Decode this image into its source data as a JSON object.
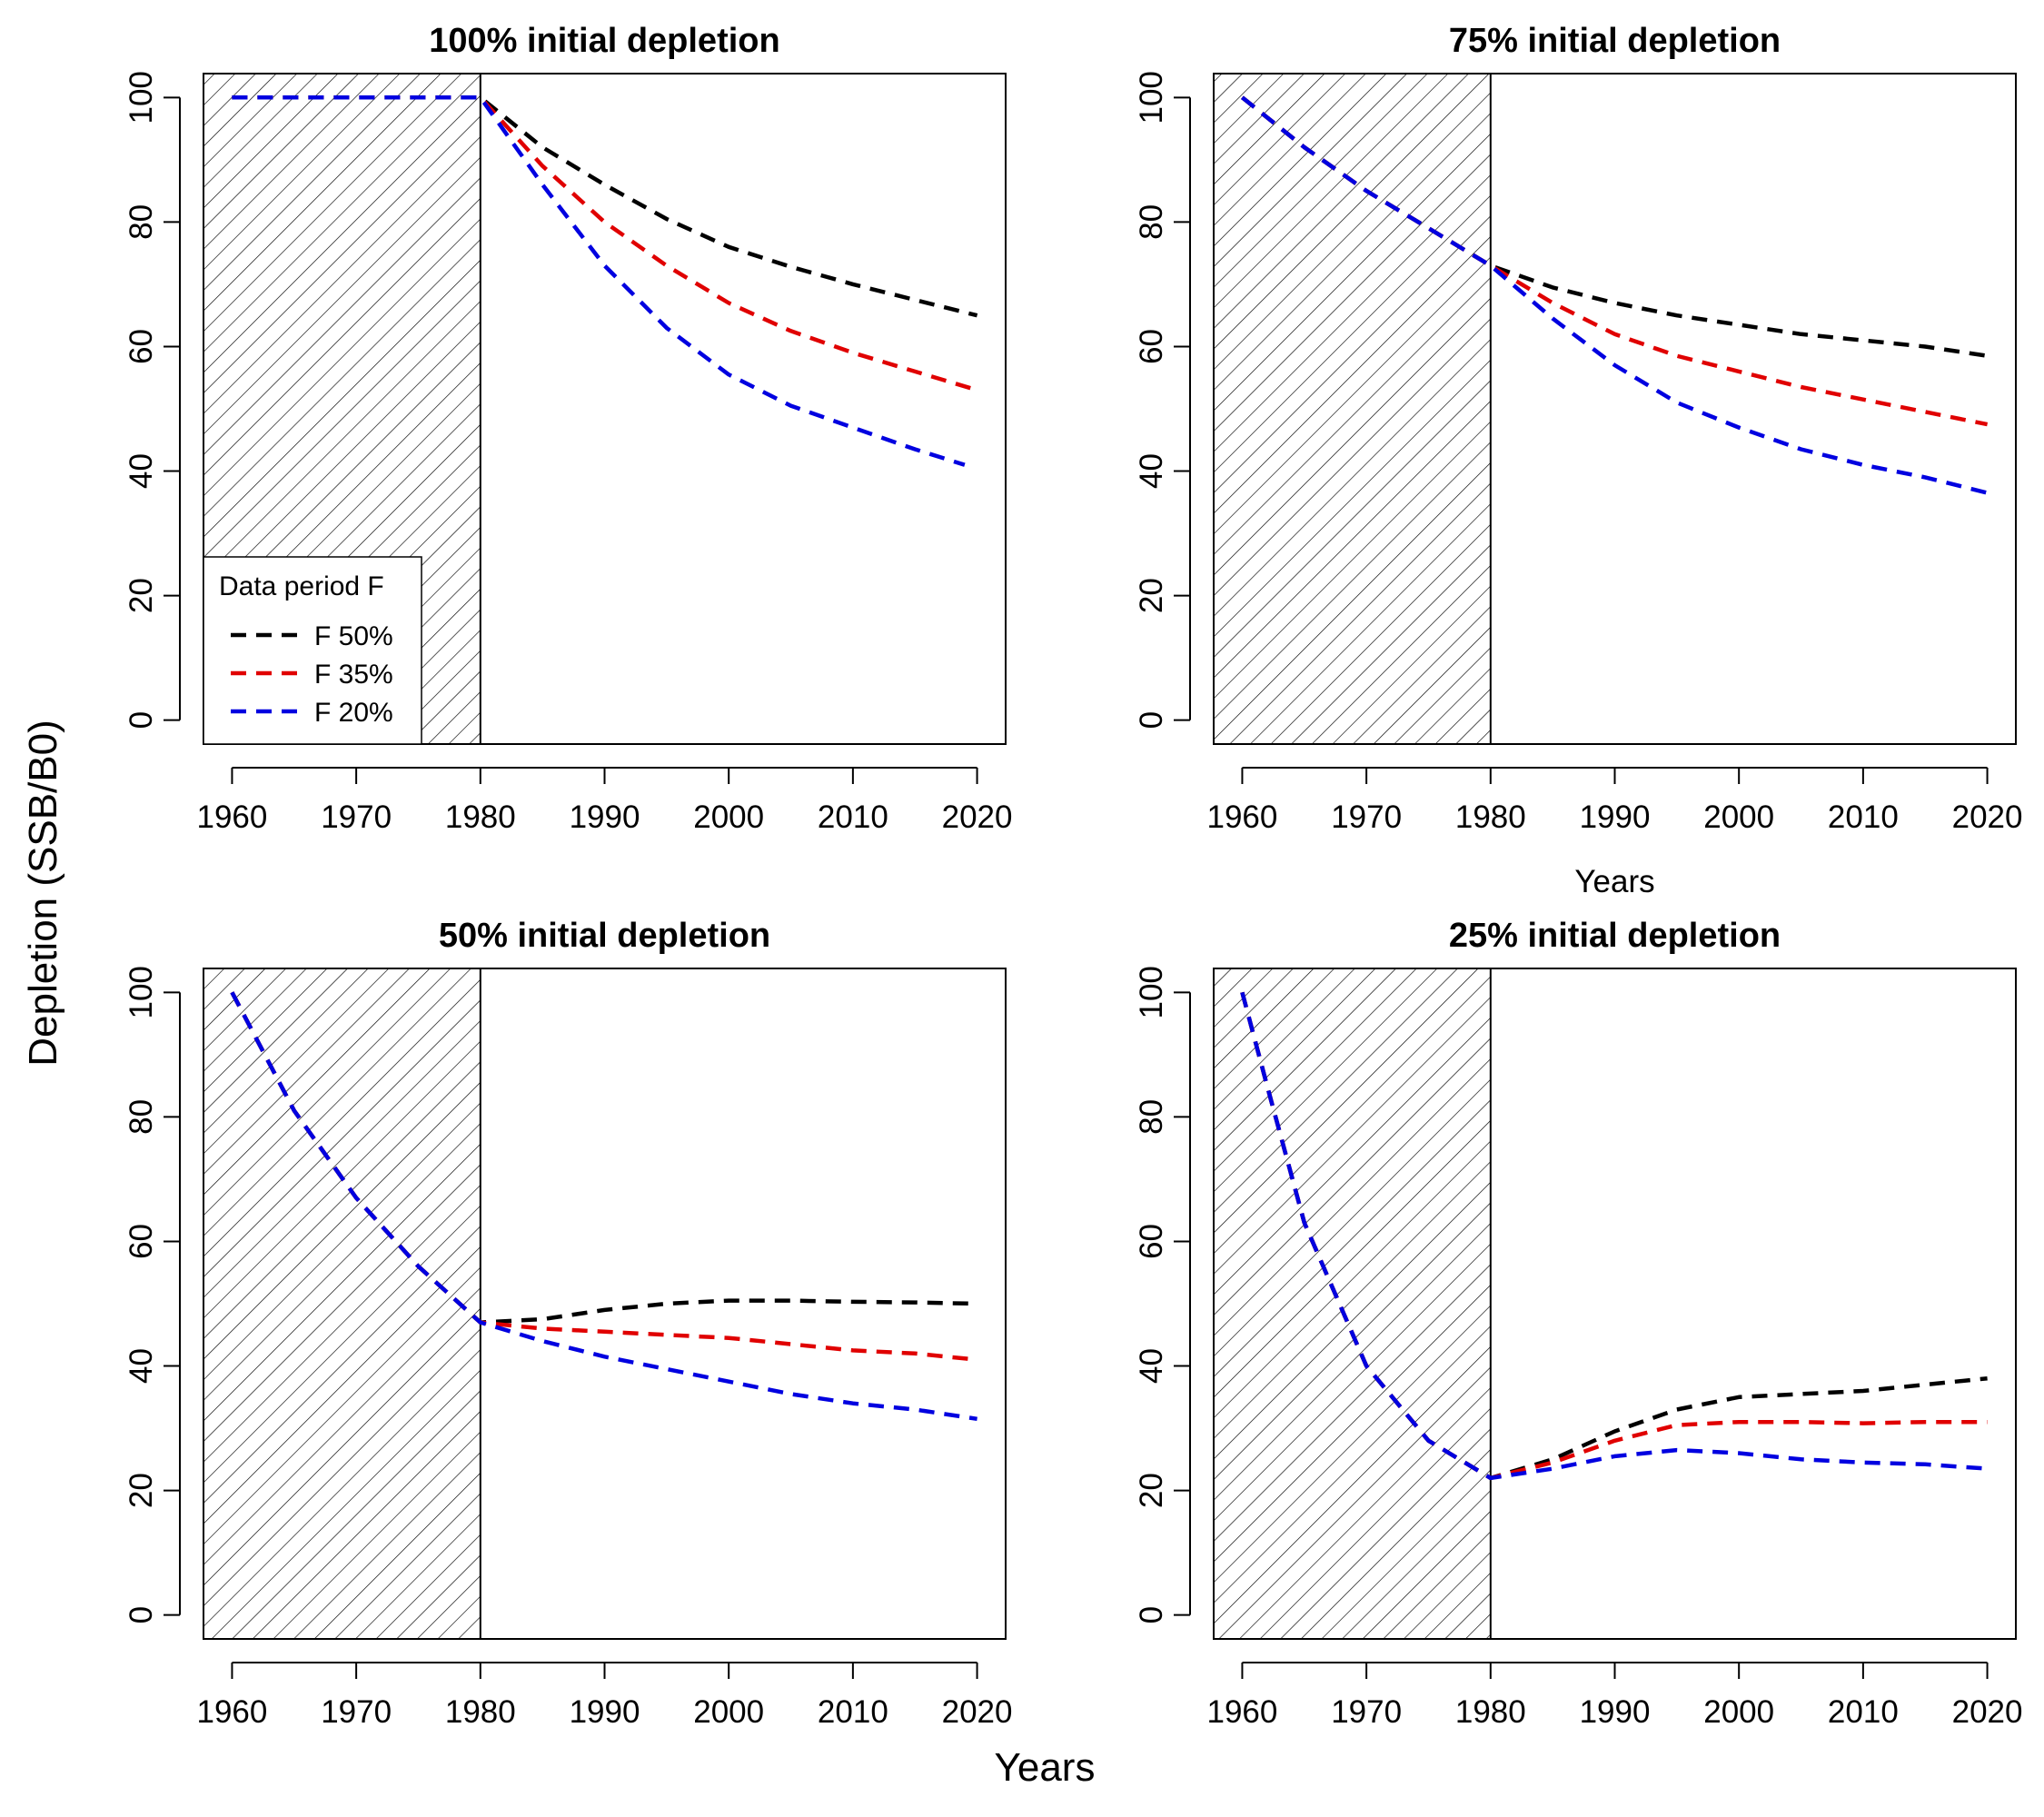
{
  "figure": {
    "ylabel": "Depletion (SSB/B0)",
    "xlabel": "Years"
  },
  "colors": {
    "F 50%": "#000000",
    "F 35%": "#e00000",
    "F 20%": "#0000e0"
  },
  "chart_data": [
    {
      "type": "line",
      "title": "100% initial depletion",
      "xlabel": "",
      "ylabel": "",
      "xlim": [
        1957.7,
        2022.3
      ],
      "ylim": [
        -3.84,
        103.84
      ],
      "xticks": [
        "1960",
        "1970",
        "1980",
        "1990",
        "2000",
        "2010",
        "2020"
      ],
      "yticks": [
        "0",
        "20",
        "40",
        "60",
        "80",
        "100"
      ],
      "shaded_period": [
        1957.7,
        1980
      ],
      "legend": {
        "title": "Data period F",
        "position": "bottom-left",
        "entries": [
          "F 50%",
          "F 35%",
          "F 20%"
        ]
      },
      "series": [
        {
          "name": "F 50%",
          "x": [
            1960,
            1980,
            1985,
            1990,
            1995,
            2000,
            2005,
            2010,
            2015,
            2020
          ],
          "y": [
            100,
            100,
            92,
            86,
            80.5,
            76,
            72.8,
            70,
            67.5,
            65
          ]
        },
        {
          "name": "F 35%",
          "x": [
            1960,
            1980,
            1985,
            1990,
            1995,
            2000,
            2005,
            2010,
            2015,
            2020
          ],
          "y": [
            100,
            100,
            89,
            80,
            73,
            67,
            62.5,
            59,
            56,
            53
          ]
        },
        {
          "name": "F 20%",
          "x": [
            1960,
            1980,
            1985,
            1990,
            1995,
            2000,
            2005,
            2010,
            2015,
            2019
          ],
          "y": [
            100,
            100,
            86,
            73,
            63,
            55.5,
            50.5,
            47,
            43.5,
            41
          ]
        }
      ]
    },
    {
      "type": "line",
      "title": "75% initial depletion",
      "xlabel": "Years",
      "ylabel": "",
      "xlim": [
        1957.7,
        2022.3
      ],
      "ylim": [
        -3.84,
        103.84
      ],
      "xticks": [
        "1960",
        "1970",
        "1980",
        "1990",
        "2000",
        "2010",
        "2020"
      ],
      "yticks": [
        "0",
        "20",
        "40",
        "60",
        "80",
        "100"
      ],
      "shaded_period": [
        1957.7,
        1980
      ],
      "series": [
        {
          "name": "F 50%",
          "x": [
            1960,
            1965,
            1970,
            1975,
            1980,
            1985,
            1990,
            1995,
            2000,
            2005,
            2010,
            2015,
            2020
          ],
          "y": [
            100,
            92,
            85,
            79,
            73,
            69.5,
            67,
            65,
            63.5,
            62,
            61,
            60,
            58.5
          ]
        },
        {
          "name": "F 35%",
          "x": [
            1960,
            1965,
            1970,
            1975,
            1980,
            1985,
            1990,
            1995,
            2000,
            2005,
            2010,
            2015,
            2020
          ],
          "y": [
            100,
            92,
            85,
            79,
            73,
            67,
            62,
            58.5,
            56,
            53.5,
            51.5,
            49.5,
            47.5
          ]
        },
        {
          "name": "F 20%",
          "x": [
            1960,
            1965,
            1970,
            1975,
            1980,
            1985,
            1990,
            1995,
            2000,
            2005,
            2010,
            2015,
            2020
          ],
          "y": [
            100,
            92,
            85,
            79,
            73,
            64.5,
            57,
            51,
            47,
            43.5,
            41,
            39,
            36.5
          ]
        }
      ]
    },
    {
      "type": "line",
      "title": "50% initial depletion",
      "xlabel": "",
      "ylabel": "",
      "xlim": [
        1957.7,
        2022.3
      ],
      "ylim": [
        -3.84,
        103.84
      ],
      "xticks": [
        "1960",
        "1970",
        "1980",
        "1990",
        "2000",
        "2010",
        "2020"
      ],
      "yticks": [
        "0",
        "20",
        "40",
        "60",
        "80",
        "100"
      ],
      "shaded_period": [
        1957.7,
        1980
      ],
      "series": [
        {
          "name": "F 50%",
          "x": [
            1960,
            1965,
            1970,
            1975,
            1980,
            1985,
            1990,
            1995,
            2000,
            2005,
            2010,
            2015,
            2020
          ],
          "y": [
            100,
            81,
            67,
            56,
            47,
            47.5,
            49,
            50,
            50.5,
            50.5,
            50.3,
            50.2,
            50
          ]
        },
        {
          "name": "F 35%",
          "x": [
            1960,
            1965,
            1970,
            1975,
            1980,
            1985,
            1990,
            1995,
            2000,
            2005,
            2010,
            2015,
            2020
          ],
          "y": [
            100,
            81,
            67,
            56,
            47,
            46,
            45.5,
            45,
            44.5,
            43.5,
            42.5,
            42,
            41
          ]
        },
        {
          "name": "F 20%",
          "x": [
            1960,
            1965,
            1970,
            1975,
            1980,
            1985,
            1990,
            1995,
            2000,
            2005,
            2010,
            2015,
            2020
          ],
          "y": [
            100,
            81,
            67,
            56,
            47,
            44,
            41.5,
            39.5,
            37.5,
            35.5,
            34,
            33,
            31.5
          ]
        }
      ]
    },
    {
      "type": "line",
      "title": "25% initial depletion",
      "xlabel": "",
      "ylabel": "",
      "xlim": [
        1957.7,
        2022.3
      ],
      "ylim": [
        -3.84,
        103.84
      ],
      "xticks": [
        "1960",
        "1970",
        "1980",
        "1990",
        "2000",
        "2010",
        "2020"
      ],
      "yticks": [
        "0",
        "20",
        "40",
        "60",
        "80",
        "100"
      ],
      "shaded_period": [
        1957.7,
        1980
      ],
      "series": [
        {
          "name": "F 50%",
          "x": [
            1960,
            1962,
            1965,
            1970,
            1975,
            1980,
            1985,
            1990,
            1995,
            2000,
            2005,
            2010,
            2015,
            2020
          ],
          "y": [
            100,
            85,
            63,
            40,
            28,
            22,
            25,
            29.5,
            33,
            35,
            35.5,
            36,
            37,
            38
          ]
        },
        {
          "name": "F 35%",
          "x": [
            1960,
            1962,
            1965,
            1970,
            1975,
            1980,
            1985,
            1990,
            1995,
            2000,
            2005,
            2010,
            2015,
            2020
          ],
          "y": [
            100,
            85,
            63,
            40,
            28,
            22,
            24.5,
            28,
            30.5,
            31,
            31,
            30.8,
            31,
            31
          ]
        },
        {
          "name": "F 20%",
          "x": [
            1960,
            1962,
            1965,
            1970,
            1975,
            1980,
            1985,
            1990,
            1995,
            2000,
            2005,
            2010,
            2015,
            2020
          ],
          "y": [
            100,
            85,
            63,
            40,
            28,
            22,
            23.5,
            25.5,
            26.5,
            26,
            25,
            24.5,
            24.2,
            23.5
          ]
        }
      ]
    }
  ]
}
